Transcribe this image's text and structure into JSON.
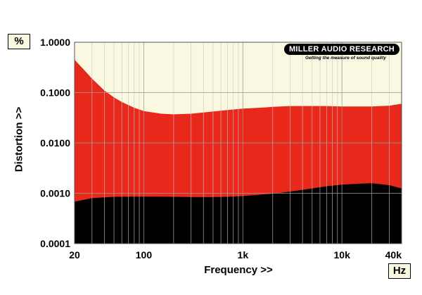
{
  "chart_data": {
    "type": "area",
    "xlabel": "Frequency >>",
    "ylabel": "Distortion >>",
    "x_unit": "Hz",
    "y_unit": "%",
    "x_scale": "log",
    "y_scale": "log",
    "xlim": [
      20,
      40000
    ],
    "ylim": [
      0.0001,
      1.0
    ],
    "grid": true,
    "x_ticks": [
      {
        "value": 20,
        "label": "20"
      },
      {
        "value": 100,
        "label": "100"
      },
      {
        "value": 1000,
        "label": "1k"
      },
      {
        "value": 10000,
        "label": "10k"
      },
      {
        "value": 40000,
        "label": "40k"
      }
    ],
    "y_ticks": [
      {
        "value": 1.0,
        "label": "1.0000"
      },
      {
        "value": 0.1,
        "label": "0.1000"
      },
      {
        "value": 0.01,
        "label": "0.0100"
      },
      {
        "value": 0.001,
        "label": "0.0010"
      },
      {
        "value": 0.0001,
        "label": "0.0001"
      }
    ],
    "series": [
      {
        "color": "#e8281a",
        "x": [
          20,
          25,
          30,
          40,
          50,
          60,
          80,
          100,
          150,
          200,
          300,
          500,
          700,
          1000,
          1500,
          2000,
          3000,
          5000,
          7000,
          10000,
          15000,
          20000,
          30000,
          40000
        ],
        "y": [
          0.45,
          0.28,
          0.19,
          0.11,
          0.08,
          0.065,
          0.05,
          0.043,
          0.038,
          0.037,
          0.038,
          0.042,
          0.045,
          0.048,
          0.05,
          0.052,
          0.054,
          0.054,
          0.054,
          0.053,
          0.053,
          0.053,
          0.055,
          0.06
        ]
      },
      {
        "color": "#000000",
        "x": [
          20,
          30,
          50,
          100,
          200,
          300,
          500,
          700,
          1000,
          2000,
          3000,
          5000,
          7000,
          10000,
          15000,
          20000,
          30000,
          40000
        ],
        "y": [
          0.00068,
          0.0008,
          0.00085,
          0.00086,
          0.00085,
          0.00084,
          0.00084,
          0.00085,
          0.00088,
          0.00098,
          0.00108,
          0.00125,
          0.00138,
          0.00148,
          0.00155,
          0.00158,
          0.00145,
          0.00125
        ]
      }
    ],
    "annotations": {
      "logo_text": "MILLER AUDIO RESEARCH",
      "logo_tagline": "Getting the measure of sound quality"
    }
  }
}
